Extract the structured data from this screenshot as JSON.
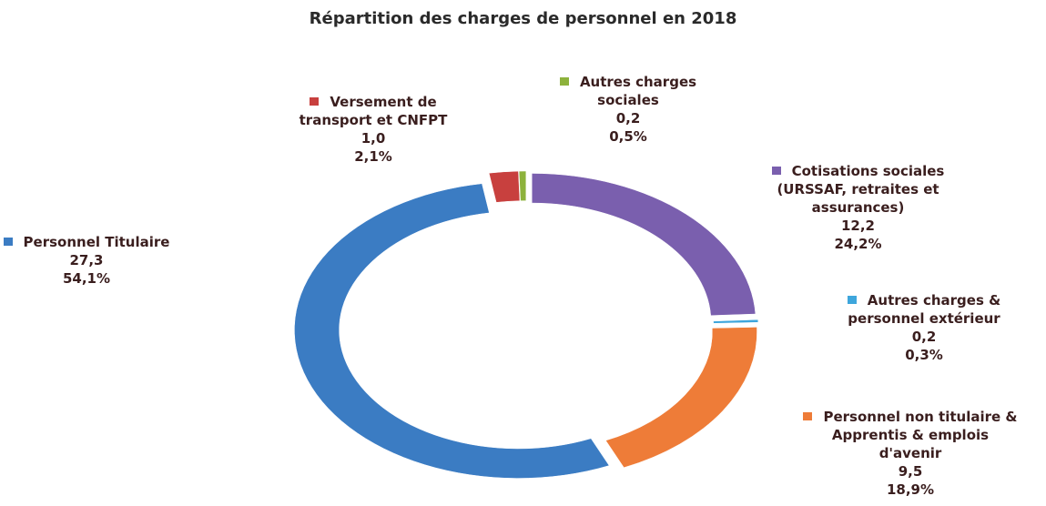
{
  "chart_data": {
    "type": "donut",
    "title": "Répartition des charges de personnel en 2018",
    "categories": [
      "Cotisations sociales (URSSAF, retraites et assurances)",
      "Autres charges & personnel extérieur",
      "Personnel non titulaire & Apprentis & emplois d'avenir",
      "Personnel Titulaire",
      "Versement de transport et CNFPT",
      "Autres charges sociales"
    ],
    "values": [
      12.2,
      0.2,
      9.5,
      27.3,
      1.0,
      0.2
    ],
    "value_labels": [
      "12,2",
      "0,2",
      "9,5",
      "27,3",
      "1,0",
      "0,2"
    ],
    "percentages": [
      24.2,
      0.3,
      18.9,
      54.1,
      2.1,
      0.5
    ],
    "percentage_labels": [
      "24,2%",
      "0,3%",
      "18,9%",
      "54,1%",
      "2,1%",
      "0,5%"
    ],
    "colors": [
      "#7a5fae",
      "#3ea6dc",
      "#ee7c38",
      "#3b7cc3",
      "#c8403e",
      "#8db23c"
    ]
  }
}
